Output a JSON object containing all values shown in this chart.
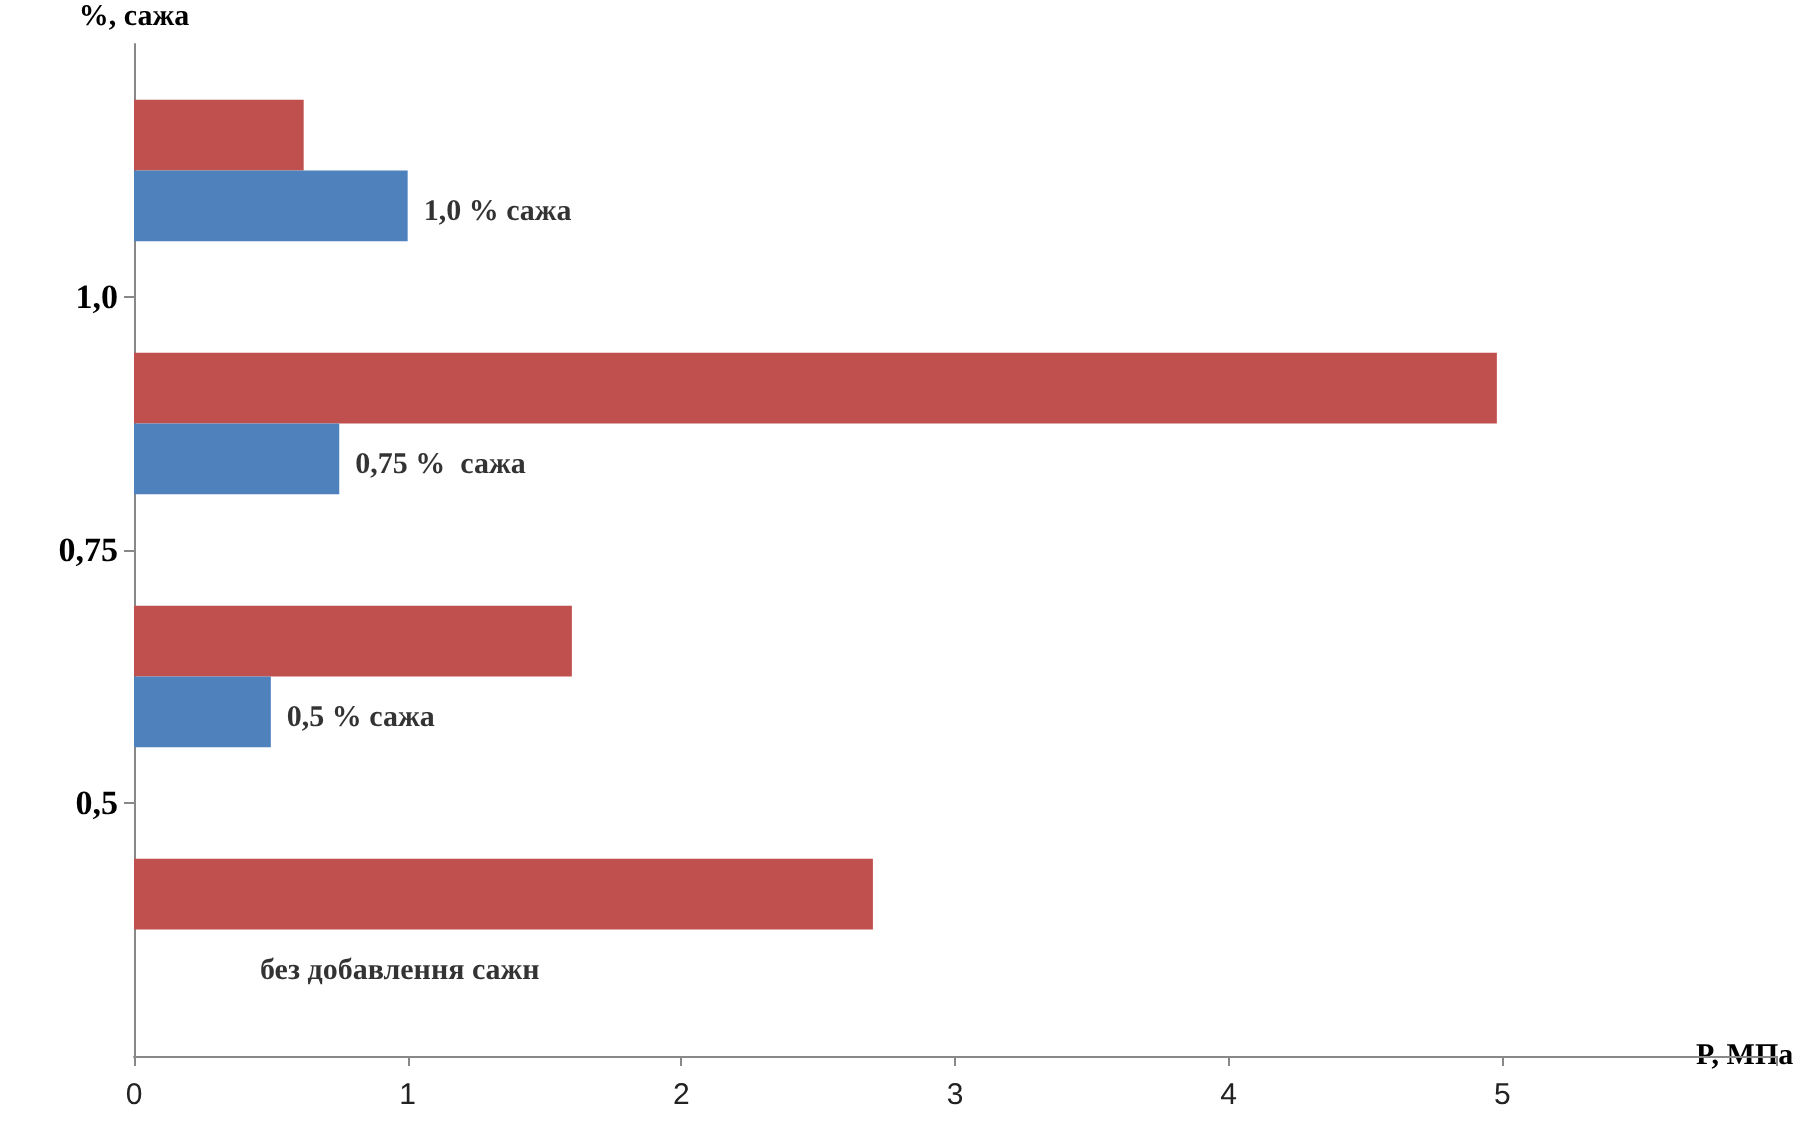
{
  "chart_data": {
    "type": "bar",
    "orientation": "horizontal",
    "xlabel": "P, МПа",
    "ylabel": "%, сажа",
    "x": [
      1.125,
      0.875,
      0.625,
      0.375
    ],
    "series": [
      {
        "color": "#c0504d",
        "values": [
          0.62,
          4.98,
          1.6,
          2.7
        ]
      },
      {
        "color": "#4f81bd",
        "values": [
          1.0,
          0.75,
          0.5,
          null
        ]
      }
    ],
    "xlim": [
      0,
      6
    ],
    "xticks": [
      0,
      1,
      2,
      3,
      4,
      5
    ],
    "ylim": [
      0.25,
      1.25
    ],
    "yticks": [
      {
        "value": 0.5,
        "label": "0,5"
      },
      {
        "value": 0.75,
        "label": "0,75"
      },
      {
        "value": 1,
        "label": "1,0"
      }
    ],
    "annotations": [
      "1,0 % сажа",
      "0,75 %  сажа",
      "0,5 % сажа",
      "без добавлення сажн"
    ]
  }
}
